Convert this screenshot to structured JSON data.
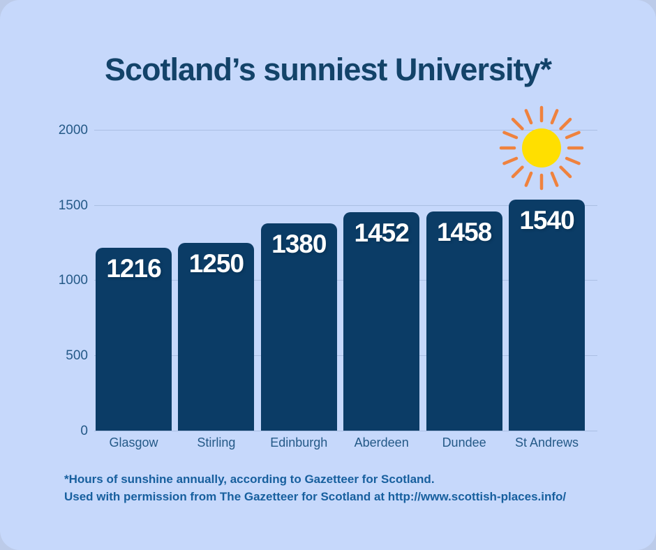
{
  "page": {
    "outer_background": "#bccbe9",
    "card_background": "#c6d8fb"
  },
  "title": "Scotland’s sunniest University*",
  "chart_data": {
    "type": "bar",
    "title": "Scotland’s sunniest University*",
    "categories": [
      "Glasgow",
      "Stirling",
      "Edinburgh",
      "Aberdeen",
      "Dundee",
      "St Andrews"
    ],
    "values": [
      1216,
      1250,
      1380,
      1452,
      1458,
      1540
    ],
    "value_labels": [
      "1216",
      "1250",
      "1380",
      "1452",
      "1458",
      "1540"
    ],
    "xlabel": "",
    "ylabel": "",
    "ylim": [
      0,
      2000
    ],
    "yticks": [
      0,
      500,
      1000,
      1500,
      2000
    ],
    "grid": true,
    "legend": "none",
    "bar_color": "#0b3c66",
    "value_label_color": "#ffffff",
    "axis_label_color": "#245987",
    "gridline_color": "#abbfe3"
  },
  "sun_icon": {
    "disc_color": "#ffdf00",
    "ray_color": "#ef823e",
    "ray_count": 16
  },
  "footnote": {
    "line1": "*Hours of sunshine annually, according to Gazetteer for Scotland.",
    "line2": "Used with permission from The Gazetteer for Scotland at http://www.scottish-places.info/"
  }
}
